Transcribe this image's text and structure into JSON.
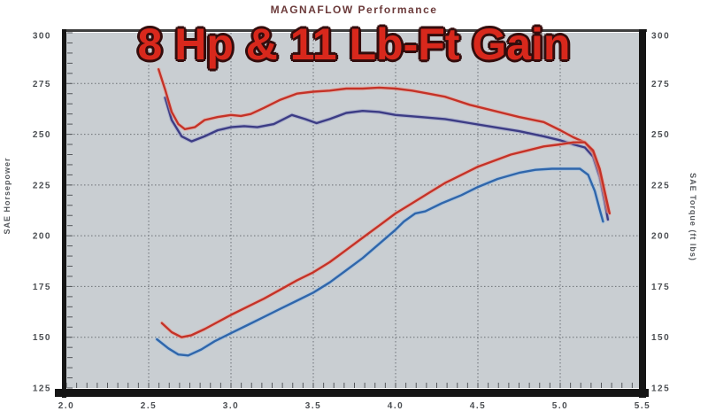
{
  "header": {
    "title": "MAGNAFLOW Performance",
    "annotation": "8 Hp & 11 Lb-Ft Gain"
  },
  "axes": {
    "left_title": "SAE Horsepower",
    "right_title": "SAE Torque (ft lbs)"
  },
  "colors": {
    "annotation_red": "#d8281c",
    "annotation_outline": "#330d0d",
    "title_maroon": "#6b3a3a",
    "plot_bg": "#c9ced2",
    "plot_border": "#151515",
    "plot_border_top": "#3f3f3f",
    "grid": "#6b7075",
    "tick_label": "#4b4e52",
    "torque_after_red": "#c53227",
    "torque_before_purple": "#3c3c85",
    "hp_after_red": "#c53227",
    "hp_before_blue": "#2f66ab"
  },
  "chart_data": {
    "type": "line",
    "title": "MAGNAFLOW Performance",
    "annotation": "8 Hp & 11 Lb-Ft Gain",
    "ylabel_left": "SAE Horsepower",
    "ylabel_right": "SAE Torque (ft lbs)",
    "x_tick_labels": [
      "2.0",
      "2.5",
      "3.0",
      "3.5",
      "4.0",
      "4.5",
      "5.0",
      "5.5"
    ],
    "x_tick_values": [
      2.0,
      2.5,
      3.0,
      3.5,
      4.0,
      4.5,
      5.0,
      5.5
    ],
    "y_tick_labels": [
      "300",
      "275",
      "250",
      "225",
      "200",
      "175",
      "150",
      "125"
    ],
    "y_tick_values": [
      300,
      275,
      250,
      225,
      200,
      175,
      150,
      125
    ],
    "xlim": [
      2.0,
      5.5
    ],
    "ylim": [
      125,
      300
    ],
    "grid": "dotted",
    "legend": "none",
    "series": [
      {
        "name": "torque-after-red",
        "color": "#c53227",
        "halo": "#e6a79e",
        "points": [
          [
            2.56,
            282
          ],
          [
            2.6,
            272
          ],
          [
            2.64,
            261
          ],
          [
            2.68,
            255
          ],
          [
            2.72,
            252.5
          ],
          [
            2.78,
            253.5
          ],
          [
            2.84,
            257
          ],
          [
            2.92,
            258.5
          ],
          [
            3.0,
            259.5
          ],
          [
            3.06,
            259
          ],
          [
            3.12,
            260
          ],
          [
            3.2,
            263
          ],
          [
            3.3,
            267
          ],
          [
            3.4,
            270
          ],
          [
            3.5,
            271
          ],
          [
            3.6,
            271.5
          ],
          [
            3.7,
            272.5
          ],
          [
            3.8,
            272.5
          ],
          [
            3.9,
            273
          ],
          [
            4.0,
            272.5
          ],
          [
            4.1,
            271.5
          ],
          [
            4.2,
            270
          ],
          [
            4.3,
            268.5
          ],
          [
            4.45,
            264.5
          ],
          [
            4.6,
            261.5
          ],
          [
            4.75,
            258.5
          ],
          [
            4.9,
            256
          ],
          [
            5.0,
            252
          ],
          [
            5.08,
            248.5
          ],
          [
            5.15,
            246
          ],
          [
            5.2,
            241
          ],
          [
            5.24,
            231
          ],
          [
            5.27,
            220
          ],
          [
            5.29,
            212
          ]
        ]
      },
      {
        "name": "torque-before-purple",
        "color": "#3c3c85",
        "halo": "#9aa0c8",
        "points": [
          [
            2.6,
            268
          ],
          [
            2.64,
            257
          ],
          [
            2.7,
            249
          ],
          [
            2.76,
            246.5
          ],
          [
            2.84,
            249
          ],
          [
            2.92,
            252
          ],
          [
            3.0,
            253.5
          ],
          [
            3.08,
            254
          ],
          [
            3.16,
            253.5
          ],
          [
            3.26,
            255
          ],
          [
            3.37,
            259.5
          ],
          [
            3.45,
            257.5
          ],
          [
            3.52,
            255.5
          ],
          [
            3.6,
            257.5
          ],
          [
            3.7,
            260.5
          ],
          [
            3.8,
            261.5
          ],
          [
            3.9,
            261
          ],
          [
            4.0,
            259.5
          ],
          [
            4.15,
            258.5
          ],
          [
            4.3,
            257.5
          ],
          [
            4.45,
            255.5
          ],
          [
            4.6,
            253.5
          ],
          [
            4.75,
            251.5
          ],
          [
            4.9,
            249
          ],
          [
            5.0,
            247
          ],
          [
            5.08,
            245
          ],
          [
            5.15,
            243.5
          ],
          [
            5.2,
            239
          ],
          [
            5.24,
            229
          ],
          [
            5.27,
            217
          ],
          [
            5.29,
            208
          ]
        ]
      },
      {
        "name": "horsepower-after-red",
        "color": "#c53227",
        "halo": "#e6a79e",
        "points": [
          [
            2.58,
            157
          ],
          [
            2.64,
            152.5
          ],
          [
            2.7,
            150
          ],
          [
            2.76,
            151
          ],
          [
            2.84,
            154
          ],
          [
            2.92,
            157.5
          ],
          [
            3.0,
            161
          ],
          [
            3.1,
            165
          ],
          [
            3.2,
            169
          ],
          [
            3.3,
            173.5
          ],
          [
            3.4,
            178
          ],
          [
            3.5,
            182
          ],
          [
            3.6,
            187
          ],
          [
            3.7,
            193
          ],
          [
            3.8,
            199
          ],
          [
            3.9,
            205
          ],
          [
            4.0,
            211
          ],
          [
            4.1,
            216
          ],
          [
            4.2,
            221
          ],
          [
            4.3,
            226
          ],
          [
            4.4,
            230
          ],
          [
            4.5,
            234
          ],
          [
            4.6,
            237
          ],
          [
            4.7,
            240
          ],
          [
            4.8,
            242
          ],
          [
            4.9,
            244
          ],
          [
            5.0,
            245
          ],
          [
            5.08,
            246
          ],
          [
            5.15,
            246
          ],
          [
            5.2,
            242
          ],
          [
            5.24,
            233
          ],
          [
            5.27,
            222
          ],
          [
            5.3,
            211
          ]
        ]
      },
      {
        "name": "horsepower-before-blue",
        "color": "#2f66ab",
        "halo": "#9fc0e0",
        "points": [
          [
            2.55,
            149
          ],
          [
            2.62,
            144.5
          ],
          [
            2.68,
            141.5
          ],
          [
            2.74,
            141
          ],
          [
            2.82,
            144
          ],
          [
            2.9,
            148
          ],
          [
            3.0,
            152
          ],
          [
            3.1,
            156
          ],
          [
            3.2,
            160
          ],
          [
            3.3,
            164
          ],
          [
            3.4,
            168
          ],
          [
            3.5,
            172
          ],
          [
            3.6,
            177
          ],
          [
            3.7,
            183
          ],
          [
            3.8,
            189
          ],
          [
            3.9,
            196
          ],
          [
            4.0,
            203
          ],
          [
            4.05,
            207
          ],
          [
            4.12,
            211
          ],
          [
            4.18,
            212
          ],
          [
            4.28,
            216
          ],
          [
            4.4,
            220
          ],
          [
            4.5,
            224
          ],
          [
            4.62,
            228
          ],
          [
            4.75,
            231
          ],
          [
            4.85,
            232.5
          ],
          [
            4.95,
            233
          ],
          [
            5.05,
            233
          ],
          [
            5.12,
            233
          ],
          [
            5.17,
            230
          ],
          [
            5.21,
            222
          ],
          [
            5.24,
            213
          ],
          [
            5.26,
            207
          ]
        ]
      }
    ]
  }
}
